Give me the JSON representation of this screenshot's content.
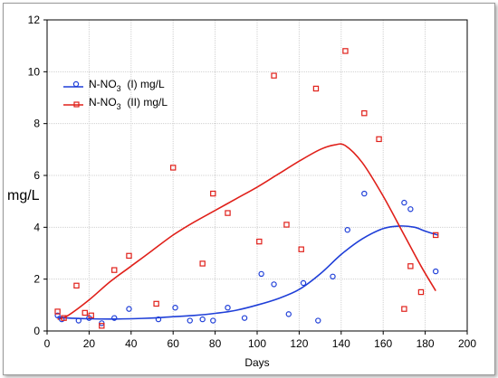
{
  "chart_data": {
    "type": "scatter",
    "xlabel": "Days",
    "ylabel": "mg/L",
    "xlim": [
      0,
      200
    ],
    "ylim": [
      0,
      12
    ],
    "xticks": [
      0,
      20,
      40,
      60,
      80,
      100,
      120,
      140,
      160,
      180,
      200
    ],
    "yticks": [
      0,
      2,
      4,
      6,
      8,
      10,
      12
    ],
    "grid": true,
    "legend_position": "top-left",
    "series": [
      {
        "name_main": "N-NO",
        "name_sub": "3",
        "name_rest": "  (I) mg/L",
        "color": "#1f3fd8",
        "marker": "circle",
        "points": [
          [
            5,
            0.6
          ],
          [
            7,
            0.45
          ],
          [
            15,
            0.4
          ],
          [
            20,
            0.5
          ],
          [
            26,
            0.3
          ],
          [
            32,
            0.5
          ],
          [
            39,
            0.85
          ],
          [
            53,
            0.45
          ],
          [
            61,
            0.9
          ],
          [
            68,
            0.4
          ],
          [
            74,
            0.45
          ],
          [
            79,
            0.4
          ],
          [
            86,
            0.9
          ],
          [
            94,
            0.5
          ],
          [
            102,
            2.2
          ],
          [
            108,
            1.8
          ],
          [
            115,
            0.65
          ],
          [
            122,
            1.85
          ],
          [
            129,
            0.4
          ],
          [
            136,
            2.1
          ],
          [
            143,
            3.9
          ],
          [
            151,
            5.3
          ],
          [
            170,
            4.95
          ],
          [
            173,
            4.7
          ],
          [
            185,
            2.3
          ]
        ],
        "fit": [
          [
            5,
            0.55
          ],
          [
            10,
            0.5
          ],
          [
            20,
            0.47
          ],
          [
            30,
            0.46
          ],
          [
            40,
            0.47
          ],
          [
            50,
            0.5
          ],
          [
            60,
            0.55
          ],
          [
            70,
            0.6
          ],
          [
            80,
            0.68
          ],
          [
            90,
            0.8
          ],
          [
            100,
            1.0
          ],
          [
            110,
            1.25
          ],
          [
            120,
            1.6
          ],
          [
            130,
            2.2
          ],
          [
            140,
            2.95
          ],
          [
            150,
            3.55
          ],
          [
            160,
            3.95
          ],
          [
            168,
            4.05
          ],
          [
            175,
            4.0
          ],
          [
            180,
            3.85
          ],
          [
            186,
            3.7
          ]
        ]
      },
      {
        "name_main": "N-NO",
        "name_sub": "3",
        "name_rest": "  (II) mg/L",
        "color": "#e0201a",
        "marker": "square",
        "points": [
          [
            5,
            0.75
          ],
          [
            8,
            0.5
          ],
          [
            14,
            1.75
          ],
          [
            18,
            0.7
          ],
          [
            21,
            0.6
          ],
          [
            26,
            0.2
          ],
          [
            32,
            2.35
          ],
          [
            39,
            2.9
          ],
          [
            52,
            1.05
          ],
          [
            60,
            6.3
          ],
          [
            74,
            2.6
          ],
          [
            79,
            5.3
          ],
          [
            86,
            4.55
          ],
          [
            101,
            3.45
          ],
          [
            108,
            9.85
          ],
          [
            114,
            4.1
          ],
          [
            121,
            3.15
          ],
          [
            128,
            9.35
          ],
          [
            142,
            10.8
          ],
          [
            151,
            8.4
          ],
          [
            158,
            7.4
          ],
          [
            170,
            0.85
          ],
          [
            173,
            2.5
          ],
          [
            178,
            1.5
          ],
          [
            185,
            3.7
          ]
        ],
        "fit": [
          [
            5,
            0.45
          ],
          [
            10,
            0.6
          ],
          [
            20,
            1.2
          ],
          [
            30,
            1.9
          ],
          [
            40,
            2.5
          ],
          [
            50,
            3.1
          ],
          [
            60,
            3.7
          ],
          [
            70,
            4.2
          ],
          [
            80,
            4.65
          ],
          [
            90,
            5.1
          ],
          [
            100,
            5.55
          ],
          [
            110,
            6.05
          ],
          [
            120,
            6.55
          ],
          [
            130,
            7.0
          ],
          [
            137,
            7.18
          ],
          [
            142,
            7.15
          ],
          [
            150,
            6.5
          ],
          [
            160,
            5.2
          ],
          [
            170,
            3.7
          ],
          [
            178,
            2.5
          ],
          [
            185,
            1.55
          ]
        ]
      }
    ]
  }
}
